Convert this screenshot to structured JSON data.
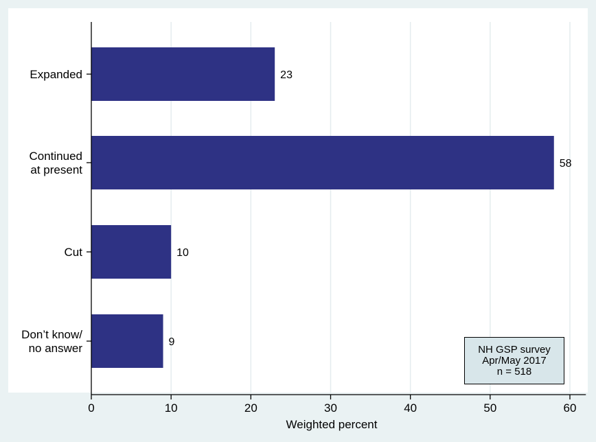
{
  "colors": {
    "background": "#eaf2f3",
    "plot_background": "#ffffff",
    "bar": "#2e3284",
    "grid": "#e4ecee"
  },
  "note": {
    "line1": "NH GSP survey",
    "line2": "Apr/May 2017",
    "line3": "n = 518"
  },
  "chart_data": {
    "type": "bar",
    "orientation": "horizontal",
    "categories": [
      [
        "Expanded"
      ],
      [
        "Continued",
        "at present"
      ],
      [
        "Cut"
      ],
      [
        "Don’t know/",
        "no answer"
      ]
    ],
    "values": [
      23,
      58,
      10,
      9
    ],
    "value_labels": [
      "23",
      "58",
      "10",
      "9"
    ],
    "title": "",
    "xlabel": "Weighted percent",
    "ylabel": "",
    "xlim": [
      0,
      62
    ],
    "xticks": [
      0,
      10,
      20,
      30,
      40,
      50,
      60
    ],
    "grid": true,
    "legend": "none"
  }
}
